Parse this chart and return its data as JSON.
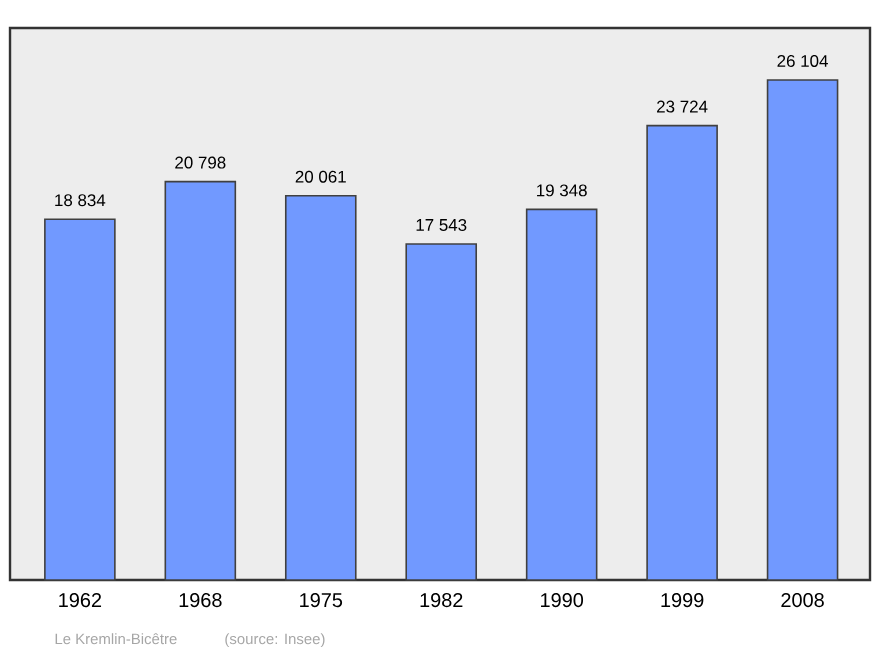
{
  "chart_data": {
    "type": "bar",
    "categories": [
      "1962",
      "1968",
      "1975",
      "1982",
      "1990",
      "1999",
      "2008"
    ],
    "values": [
      18834,
      20798,
      20061,
      17543,
      19348,
      23724,
      26104
    ],
    "value_labels": [
      "18 834",
      "20 798",
      "20 061",
      "17 543",
      "19 348",
      "23 724",
      "26 104"
    ],
    "color": "#7199ff",
    "annotations": [
      "Le Kremlin-Bicêtre",
      "(source: Insee)"
    ]
  }
}
